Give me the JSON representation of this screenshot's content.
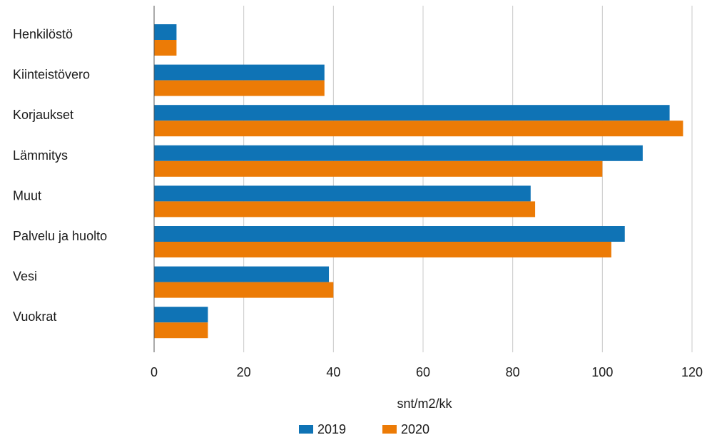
{
  "chart_data": {
    "type": "bar",
    "orientation": "horizontal",
    "categories": [
      "Henkilöstö",
      "Kiinteistövero",
      "Korjaukset",
      "Lämmitys",
      "Muut",
      "Palvelu ja huolto",
      "Vesi",
      "Vuokrat"
    ],
    "series": [
      {
        "name": "2019",
        "color": "#0f73b5",
        "values": [
          5,
          38,
          115,
          109,
          84,
          105,
          39,
          12
        ]
      },
      {
        "name": "2020",
        "color": "#ec7b06",
        "values": [
          5,
          38,
          118,
          100,
          85,
          102,
          40,
          12
        ]
      }
    ],
    "xlabel": "snt/m2/kk",
    "ylabel": "",
    "xlim": [
      0,
      120
    ],
    "xticks": [
      "0",
      "20",
      "40",
      "60",
      "80",
      "100",
      "120"
    ],
    "grid": true,
    "legend_position": "bottom"
  }
}
